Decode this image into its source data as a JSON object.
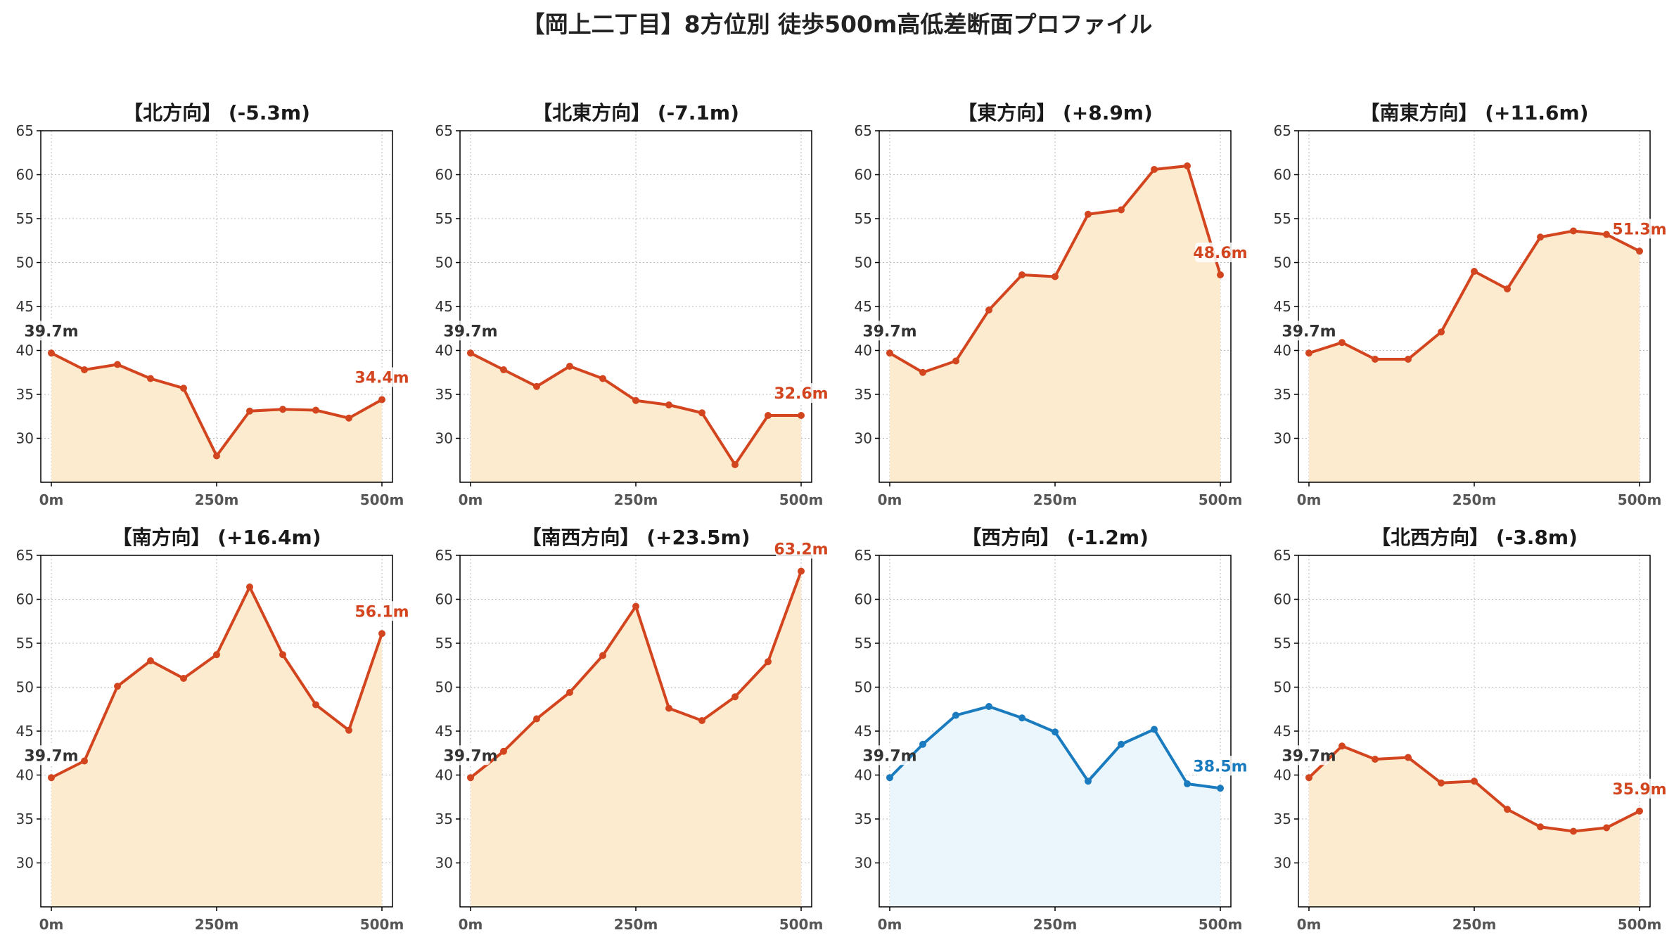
{
  "title": "【岡上二丁目】8方位別 徒歩500m高低差断面プロファイル",
  "colors": {
    "rise_line": "#d2451e",
    "rise_fill": "#fdebd0",
    "fall_line": "#1a7bbf",
    "fall_fill": "#eaf6fc",
    "start_label": "#333333",
    "grid": "#bbbbbb"
  },
  "chart_data": [
    {
      "type": "line",
      "title": "【北方向】 (-5.3m)",
      "x": [
        0,
        50,
        100,
        150,
        200,
        250,
        300,
        350,
        400,
        450,
        500
      ],
      "values": [
        39.7,
        37.8,
        38.4,
        36.8,
        35.7,
        28.0,
        33.1,
        33.3,
        33.2,
        32.3,
        34.4
      ],
      "xticks": [
        "0m",
        "250m",
        "500m"
      ],
      "yticks": [
        "30",
        "35",
        "40",
        "45",
        "50",
        "55",
        "60",
        "65"
      ],
      "ylim": [
        25,
        65
      ],
      "grid": true,
      "start_label": "39.7m",
      "end_label": "34.4m",
      "style": "rise"
    },
    {
      "type": "line",
      "title": "【北東方向】 (-7.1m)",
      "x": [
        0,
        50,
        100,
        150,
        200,
        250,
        300,
        350,
        400,
        450,
        500
      ],
      "values": [
        39.7,
        37.8,
        35.9,
        38.2,
        36.8,
        34.3,
        33.8,
        32.9,
        27.0,
        32.6,
        32.6
      ],
      "xticks": [
        "0m",
        "250m",
        "500m"
      ],
      "yticks": [
        "30",
        "35",
        "40",
        "45",
        "50",
        "55",
        "60",
        "65"
      ],
      "ylim": [
        25,
        65
      ],
      "grid": true,
      "start_label": "39.7m",
      "end_label": "32.6m",
      "style": "rise"
    },
    {
      "type": "line",
      "title": "【東方向】 (+8.9m)",
      "x": [
        0,
        50,
        100,
        150,
        200,
        250,
        300,
        350,
        400,
        450,
        500
      ],
      "values": [
        39.7,
        37.5,
        38.8,
        44.6,
        48.6,
        48.4,
        55.5,
        56.0,
        60.6,
        61.0,
        48.6
      ],
      "xticks": [
        "0m",
        "250m",
        "500m"
      ],
      "yticks": [
        "30",
        "35",
        "40",
        "45",
        "50",
        "55",
        "60",
        "65"
      ],
      "ylim": [
        25,
        65
      ],
      "grid": true,
      "start_label": "39.7m",
      "end_label": "48.6m",
      "style": "rise"
    },
    {
      "type": "line",
      "title": "【南東方向】 (+11.6m)",
      "x": [
        0,
        50,
        100,
        150,
        200,
        250,
        300,
        350,
        400,
        450,
        500
      ],
      "values": [
        39.7,
        40.9,
        39.0,
        39.0,
        42.1,
        49.0,
        47.0,
        52.9,
        53.6,
        53.2,
        51.3
      ],
      "xticks": [
        "0m",
        "250m",
        "500m"
      ],
      "yticks": [
        "30",
        "35",
        "40",
        "45",
        "50",
        "55",
        "60",
        "65"
      ],
      "ylim": [
        25,
        65
      ],
      "grid": true,
      "start_label": "39.7m",
      "end_label": "51.3m",
      "style": "rise"
    },
    {
      "type": "line",
      "title": "【南方向】 (+16.4m)",
      "x": [
        0,
        50,
        100,
        150,
        200,
        250,
        300,
        350,
        400,
        450,
        500
      ],
      "values": [
        39.7,
        41.6,
        50.1,
        53.0,
        51.0,
        53.7,
        61.4,
        53.7,
        48.0,
        45.1,
        56.1
      ],
      "xticks": [
        "0m",
        "250m",
        "500m"
      ],
      "yticks": [
        "30",
        "35",
        "40",
        "45",
        "50",
        "55",
        "60",
        "65"
      ],
      "ylim": [
        25,
        65
      ],
      "grid": true,
      "start_label": "39.7m",
      "end_label": "56.1m",
      "style": "rise"
    },
    {
      "type": "line",
      "title": "【南西方向】 (+23.5m)",
      "x": [
        0,
        50,
        100,
        150,
        200,
        250,
        300,
        350,
        400,
        450,
        500
      ],
      "values": [
        39.7,
        42.7,
        46.4,
        49.4,
        53.6,
        59.2,
        47.6,
        46.2,
        48.9,
        52.9,
        63.2
      ],
      "xticks": [
        "0m",
        "250m",
        "500m"
      ],
      "yticks": [
        "30",
        "35",
        "40",
        "45",
        "50",
        "55",
        "60",
        "65"
      ],
      "ylim": [
        25,
        65
      ],
      "grid": true,
      "start_label": "39.7m",
      "end_label": "63.2m",
      "style": "rise"
    },
    {
      "type": "line",
      "title": "【西方向】 (-1.2m)",
      "x": [
        0,
        50,
        100,
        150,
        200,
        250,
        300,
        350,
        400,
        450,
        500
      ],
      "values": [
        39.7,
        43.5,
        46.8,
        47.8,
        46.5,
        44.9,
        39.3,
        43.5,
        45.2,
        39.0,
        38.5
      ],
      "xticks": [
        "0m",
        "250m",
        "500m"
      ],
      "yticks": [
        "30",
        "35",
        "40",
        "45",
        "50",
        "55",
        "60",
        "65"
      ],
      "ylim": [
        25,
        65
      ],
      "grid": true,
      "start_label": "39.7m",
      "end_label": "38.5m",
      "style": "fall"
    },
    {
      "type": "line",
      "title": "【北西方向】 (-3.8m)",
      "x": [
        0,
        50,
        100,
        150,
        200,
        250,
        300,
        350,
        400,
        450,
        500
      ],
      "values": [
        39.7,
        43.3,
        41.8,
        42.0,
        39.1,
        39.3,
        36.1,
        34.1,
        33.6,
        34.0,
        35.9
      ],
      "xticks": [
        "0m",
        "250m",
        "500m"
      ],
      "yticks": [
        "30",
        "35",
        "40",
        "45",
        "50",
        "55",
        "60",
        "65"
      ],
      "ylim": [
        25,
        65
      ],
      "grid": true,
      "start_label": "39.7m",
      "end_label": "35.9m",
      "style": "rise"
    }
  ]
}
